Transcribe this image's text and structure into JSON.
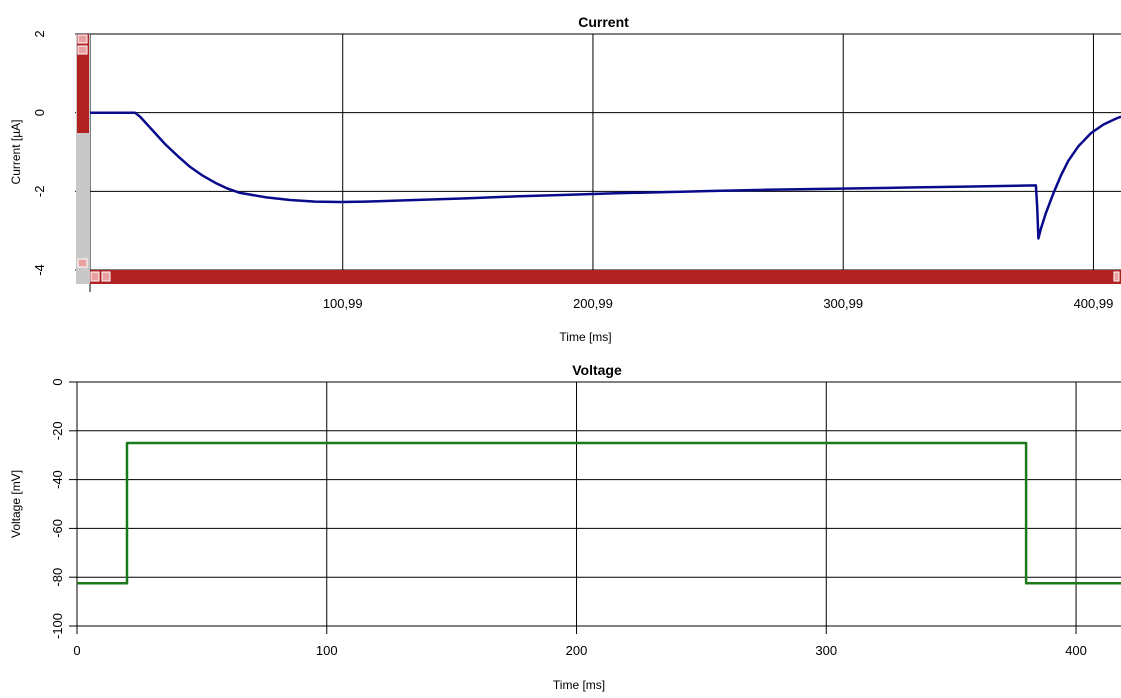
{
  "chart_data": [
    {
      "type": "line",
      "title": "Current",
      "xlabel": "Time [ms]",
      "ylabel": "Current [µA]",
      "xlim": [
        0,
        412
      ],
      "ylim": [
        -4,
        2
      ],
      "x_ticks": [
        100.99,
        200.99,
        300.99,
        400.99
      ],
      "x_tick_labels": [
        "100,99",
        "200,99",
        "300,99",
        "400,99"
      ],
      "y_ticks": [
        2,
        0,
        -2,
        -4
      ],
      "y_tick_labels": [
        "2",
        "0",
        "-2",
        "-4"
      ],
      "grid": true,
      "line_color": "#0a0a8c",
      "scrollbar_color": "#b22222",
      "series": [
        {
          "values": [
            [
              0,
              0
            ],
            [
              18,
              0
            ],
            [
              20,
              -0.1
            ],
            [
              25,
              -0.45
            ],
            [
              30,
              -0.8
            ],
            [
              35,
              -1.1
            ],
            [
              40,
              -1.38
            ],
            [
              45,
              -1.6
            ],
            [
              50,
              -1.78
            ],
            [
              55,
              -1.93
            ],
            [
              60,
              -2.04
            ],
            [
              70,
              -2.15
            ],
            [
              80,
              -2.22
            ],
            [
              90,
              -2.26
            ],
            [
              100,
              -2.27
            ],
            [
              110,
              -2.26
            ],
            [
              130,
              -2.22
            ],
            [
              150,
              -2.18
            ],
            [
              170,
              -2.13
            ],
            [
              190,
              -2.09
            ],
            [
              210,
              -2.05
            ],
            [
              230,
              -2.02
            ],
            [
              250,
              -1.99
            ],
            [
              270,
              -1.96
            ],
            [
              290,
              -1.94
            ],
            [
              310,
              -1.92
            ],
            [
              330,
              -1.9
            ],
            [
              350,
              -1.88
            ],
            [
              370,
              -1.86
            ],
            [
              378,
              -1.85
            ],
            [
              378.5,
              -2.4
            ],
            [
              379,
              -3.2
            ],
            [
              380,
              -2.95
            ],
            [
              382,
              -2.55
            ],
            [
              385,
              -2.05
            ],
            [
              388,
              -1.6
            ],
            [
              391,
              -1.22
            ],
            [
              395,
              -0.85
            ],
            [
              400,
              -0.52
            ],
            [
              405,
              -0.3
            ],
            [
              410,
              -0.15
            ],
            [
              412,
              -0.1
            ]
          ]
        }
      ]
    },
    {
      "type": "line",
      "title": "Voltage",
      "xlabel": "Time [ms]",
      "ylabel": "Voltage [mV]",
      "xlim": [
        0,
        418
      ],
      "ylim": [
        -100,
        0
      ],
      "x_ticks": [
        0,
        100,
        200,
        300,
        400
      ],
      "x_tick_labels": [
        "0",
        "100",
        "200",
        "300",
        "400"
      ],
      "y_ticks": [
        0,
        -20,
        -40,
        -60,
        -80,
        -100
      ],
      "y_tick_labels": [
        "0",
        "-20",
        "-40",
        "-60",
        "-80",
        "-100"
      ],
      "grid": true,
      "line_color": "#1a7a1a",
      "series": [
        {
          "values": [
            [
              0,
              -82.5
            ],
            [
              20,
              -82.5
            ],
            [
              20,
              -25
            ],
            [
              380,
              -25
            ],
            [
              380,
              -82.5
            ],
            [
              418,
              -82.5
            ]
          ]
        }
      ]
    }
  ]
}
